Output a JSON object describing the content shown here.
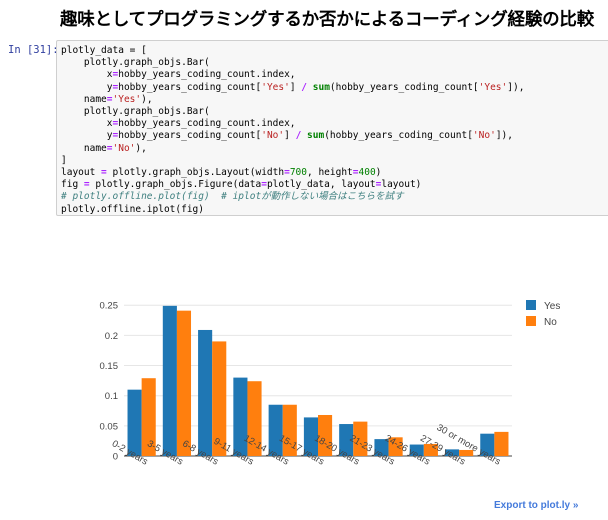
{
  "heading": "趣味としてプログラミングするか否かによるコーディング経験の比較",
  "cell": {
    "prompt": "In [31]:",
    "code_lines": [
      [
        {
          "t": "plotly_data = [",
          "c": ""
        }
      ],
      [
        {
          "t": "    plotly.graph_objs.Bar(",
          "c": ""
        }
      ],
      [
        {
          "t": "        x",
          "c": ""
        },
        {
          "t": "=",
          "c": "op"
        },
        {
          "t": "hobby_years_coding_count.index,",
          "c": ""
        }
      ],
      [
        {
          "t": "        y",
          "c": ""
        },
        {
          "t": "=",
          "c": "op"
        },
        {
          "t": "hobby_years_coding_count[",
          "c": ""
        },
        {
          "t": "'Yes'",
          "c": "str"
        },
        {
          "t": "] ",
          "c": ""
        },
        {
          "t": "/",
          "c": "op"
        },
        {
          "t": " ",
          "c": ""
        },
        {
          "t": "sum",
          "c": "kw"
        },
        {
          "t": "(hobby_years_coding_count[",
          "c": ""
        },
        {
          "t": "'Yes'",
          "c": "str"
        },
        {
          "t": "]),",
          "c": ""
        }
      ],
      [
        {
          "t": "    name",
          "c": ""
        },
        {
          "t": "=",
          "c": "op"
        },
        {
          "t": "'Yes'",
          "c": "str"
        },
        {
          "t": "),",
          "c": ""
        }
      ],
      [
        {
          "t": "    plotly.graph_objs.Bar(",
          "c": ""
        }
      ],
      [
        {
          "t": "        x",
          "c": ""
        },
        {
          "t": "=",
          "c": "op"
        },
        {
          "t": "hobby_years_coding_count.index,",
          "c": ""
        }
      ],
      [
        {
          "t": "        y",
          "c": ""
        },
        {
          "t": "=",
          "c": "op"
        },
        {
          "t": "hobby_years_coding_count[",
          "c": ""
        },
        {
          "t": "'No'",
          "c": "str"
        },
        {
          "t": "] ",
          "c": ""
        },
        {
          "t": "/",
          "c": "op"
        },
        {
          "t": " ",
          "c": ""
        },
        {
          "t": "sum",
          "c": "kw"
        },
        {
          "t": "(hobby_years_coding_count[",
          "c": ""
        },
        {
          "t": "'No'",
          "c": "str"
        },
        {
          "t": "]),",
          "c": ""
        }
      ],
      [
        {
          "t": "    name",
          "c": ""
        },
        {
          "t": "=",
          "c": "op"
        },
        {
          "t": "'No'",
          "c": "str"
        },
        {
          "t": "),",
          "c": ""
        }
      ],
      [
        {
          "t": "]",
          "c": ""
        }
      ],
      [
        {
          "t": "layout ",
          "c": ""
        },
        {
          "t": "=",
          "c": "op"
        },
        {
          "t": " plotly.graph_objs.Layout(width",
          "c": ""
        },
        {
          "t": "=",
          "c": "op"
        },
        {
          "t": "700",
          "c": "num"
        },
        {
          "t": ", height",
          "c": ""
        },
        {
          "t": "=",
          "c": "op"
        },
        {
          "t": "400",
          "c": "num"
        },
        {
          "t": ")",
          "c": ""
        }
      ],
      [
        {
          "t": "fig ",
          "c": ""
        },
        {
          "t": "=",
          "c": "op"
        },
        {
          "t": " plotly.graph_objs.Figure(data",
          "c": ""
        },
        {
          "t": "=",
          "c": "op"
        },
        {
          "t": "plotly_data, layout",
          "c": ""
        },
        {
          "t": "=",
          "c": "op"
        },
        {
          "t": "layout)",
          "c": ""
        }
      ],
      [
        {
          "t": "# plotly.offline.plot(fig)  # iplotが動作しない場合はこちらを試す",
          "c": "com"
        }
      ],
      [
        {
          "t": "plotly.offline.iplot(fig)",
          "c": ""
        }
      ]
    ]
  },
  "export_link": "Export to plot.ly »",
  "chart_data": {
    "type": "bar",
    "categories": [
      "0-2 years",
      "3-5 years",
      "6-8 years",
      "9-11 years",
      "12-14 years",
      "15-17 years",
      "18-20 years",
      "21-23 years",
      "24-26 years",
      "27-29 years",
      "30 or more years"
    ],
    "series": [
      {
        "name": "Yes",
        "color": "#1f77b4",
        "values": [
          0.11,
          0.249,
          0.209,
          0.13,
          0.085,
          0.064,
          0.053,
          0.028,
          0.019,
          0.011,
          0.037
        ]
      },
      {
        "name": "No",
        "color": "#ff7f0e",
        "values": [
          0.129,
          0.241,
          0.19,
          0.124,
          0.085,
          0.068,
          0.057,
          0.031,
          0.02,
          0.01,
          0.04
        ]
      }
    ],
    "yticks": [
      "0",
      "0.05",
      "0.1",
      "0.15",
      "0.2",
      "0.25"
    ],
    "ylim": [
      0,
      0.262
    ],
    "legend_position": "top-right"
  }
}
